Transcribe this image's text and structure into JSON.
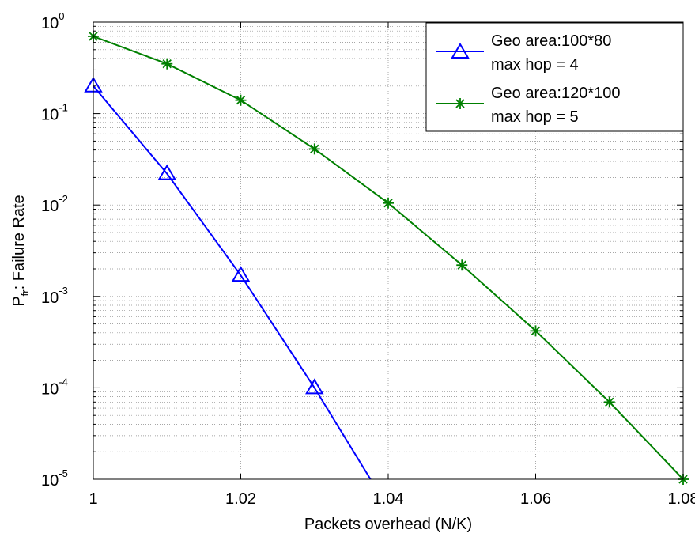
{
  "chart_data": {
    "type": "line",
    "title": "",
    "xlabel": "Packets overhead (N/K)",
    "ylabel": {
      "main": "P",
      "sub": "fr",
      "rest": ": Failure Rate"
    },
    "xlim": [
      1,
      1.08
    ],
    "ylim": [
      1e-05,
      1
    ],
    "yscale": "log",
    "grid": true,
    "legend_position": "top-right",
    "x_ticks": [
      "1",
      "1.02",
      "1.04",
      "1.06",
      "1.08"
    ],
    "x_tick_values": [
      1,
      1.02,
      1.04,
      1.06,
      1.08
    ],
    "y_ticks": [
      {
        "base": "10",
        "exp": "0"
      },
      {
        "base": "10",
        "exp": "-1"
      },
      {
        "base": "10",
        "exp": "-2"
      },
      {
        "base": "10",
        "exp": "-3"
      },
      {
        "base": "10",
        "exp": "-4"
      },
      {
        "base": "10",
        "exp": "-5"
      }
    ],
    "y_tick_values": [
      1,
      0.1,
      0.01,
      0.001,
      0.0001,
      1e-05
    ],
    "series": [
      {
        "name_lines": [
          "Geo area:100*80",
          "max hop = 4"
        ],
        "color": "#0000ff",
        "marker": "triangle",
        "x": [
          1.0,
          1.01,
          1.02,
          1.03
        ],
        "y": [
          0.2,
          0.022,
          0.0017,
          0.0001
        ],
        "line_end": {
          "x": 1.0376,
          "y": 1e-05
        }
      },
      {
        "name_lines": [
          "Geo area:120*100",
          "max hop = 5"
        ],
        "color": "#008000",
        "marker": "asterisk",
        "x": [
          1.0,
          1.01,
          1.02,
          1.03,
          1.04,
          1.05,
          1.06,
          1.07,
          1.08
        ],
        "y": [
          0.7,
          0.35,
          0.14,
          0.041,
          0.0105,
          0.0022,
          0.00042,
          7e-05,
          1e-05
        ]
      }
    ]
  }
}
